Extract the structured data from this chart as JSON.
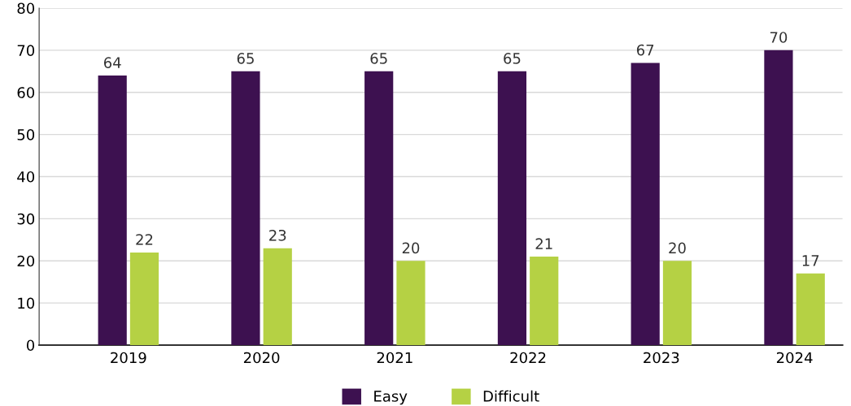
{
  "chart_data": {
    "type": "bar",
    "categories": [
      "2019",
      "2020",
      "2021",
      "2022",
      "2023",
      "2024"
    ],
    "series": [
      {
        "name": "Easy",
        "color": "#3d1150",
        "values": [
          64,
          65,
          65,
          65,
          67,
          70
        ]
      },
      {
        "name": "Difficult",
        "color": "#b5d144",
        "values": [
          22,
          23,
          20,
          21,
          20,
          17
        ]
      }
    ],
    "ylim": [
      0,
      80
    ],
    "yticks": [
      0,
      10,
      20,
      30,
      40,
      50,
      60,
      70,
      80
    ],
    "grid": "y",
    "legend": "bottom",
    "data_labels": true
  }
}
